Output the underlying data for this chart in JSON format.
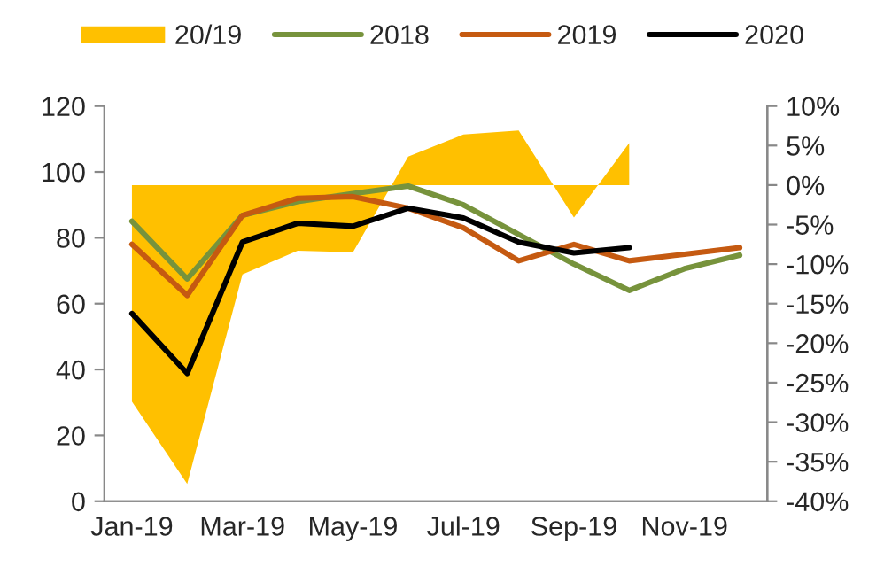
{
  "chart_data": {
    "type": "line",
    "categories": [
      "Jan-19",
      null,
      "Mar-19",
      null,
      "May-19",
      null,
      "Jul-19",
      null,
      "Sep-19",
      null,
      "Nov-19",
      null
    ],
    "series": [
      {
        "name": "20/19",
        "type": "area",
        "axis": "y2",
        "color": "#ffc000",
        "values": [
          -27.4,
          -37.8,
          -11.3,
          -8.3,
          -8.5,
          3.6,
          6.4,
          6.9,
          -4.1,
          5.3,
          null,
          null
        ]
      },
      {
        "name": "2018",
        "color": "#77933c",
        "values": [
          85,
          67.5,
          86.8,
          91,
          93.4,
          95.7,
          90,
          81,
          72,
          64,
          70.6,
          74.7
        ]
      },
      {
        "name": "2019",
        "color": "#c55a11",
        "values": [
          78,
          62.5,
          86.8,
          92,
          92.5,
          89,
          83,
          73,
          78,
          73,
          75,
          77
        ]
      },
      {
        "name": "2020",
        "color": "#000000",
        "values": [
          57,
          38.8,
          78.7,
          84.4,
          83.5,
          89,
          86,
          78.7,
          75.4,
          77,
          null,
          null
        ]
      }
    ],
    "ylim": [
      0,
      120
    ],
    "yticks": [
      0,
      20,
      40,
      60,
      80,
      100,
      120
    ],
    "y2lim": [
      -40,
      10
    ],
    "y2ticks": [
      {
        "value": 10,
        "label": "10%"
      },
      {
        "value": 5,
        "label": "5%"
      },
      {
        "value": 0,
        "label": "0%"
      },
      {
        "value": -5,
        "label": "-5%"
      },
      {
        "value": -10,
        "label": "-10%"
      },
      {
        "value": -15,
        "label": "-15%"
      },
      {
        "value": -20,
        "label": "-20%"
      },
      {
        "value": -25,
        "label": "-25%"
      },
      {
        "value": -30,
        "label": "-30%"
      },
      {
        "value": -35,
        "label": "-35%"
      },
      {
        "value": -40,
        "label": "-40%"
      }
    ],
    "legend": "top",
    "grid": false,
    "marker": "none",
    "line_style": "solid"
  }
}
